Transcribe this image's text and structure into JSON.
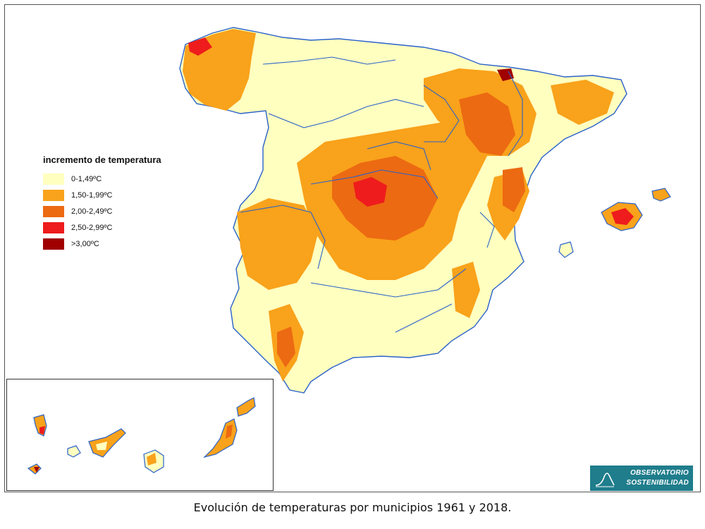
{
  "legend": {
    "title": "incremento de temperatura",
    "items": [
      {
        "label": "0-1,49ºC",
        "color": "#ffffc0"
      },
      {
        "label": "1,50-1,99ºC",
        "color": "#f9a21b"
      },
      {
        "label": "2,00-2,49ºC",
        "color": "#ec6a12"
      },
      {
        "label": "2,50-2,99ºC",
        "color": "#ee1c1c"
      },
      {
        "label": ">3,00ºC",
        "color": "#a00000"
      }
    ]
  },
  "colors": {
    "border": "#2a62c9",
    "base": "#ffffc0",
    "orange": "#f9a21b",
    "dark_orange": "#ec6a12",
    "red": "#ee1c1c",
    "dark_red": "#a00000",
    "logo_bg": "#1f7d8c"
  },
  "logo": {
    "line1": "OBSERVATORIO",
    "line2": "SOSTENIBILIDAD",
    "icon": "chart-curve-icon"
  },
  "caption": "Evolución de temperaturas por municipios 1961 y 2018."
}
